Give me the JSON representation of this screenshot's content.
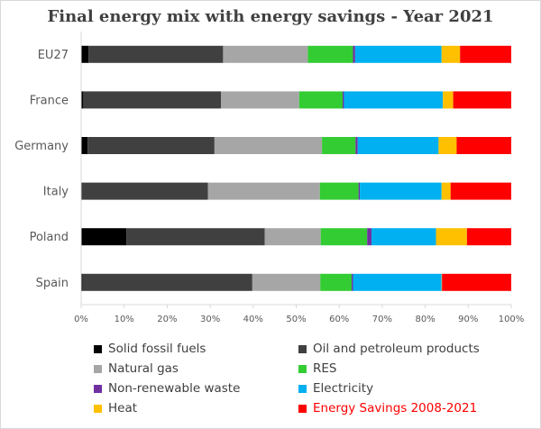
{
  "chart_data": {
    "type": "bar",
    "orientation": "horizontal",
    "stacked": "percent",
    "title": "Final energy mix with energy savings - Year 2021",
    "xlabel": "",
    "ylabel": "",
    "xlim": [
      0,
      100
    ],
    "x_ticks": [
      "0%",
      "10%",
      "20%",
      "30%",
      "40%",
      "50%",
      "60%",
      "70%",
      "80%",
      "90%",
      "100%"
    ],
    "grid": false,
    "legend_position": "bottom",
    "categories": [
      "EU27",
      "France",
      "Germany",
      "Italy",
      "Poland",
      "Spain"
    ],
    "series": [
      {
        "name": "Solid fossil fuels",
        "color": "#000000",
        "values": [
          1.7,
          0.5,
          1.5,
          0.2,
          10.5,
          0.3
        ]
      },
      {
        "name": "Oil and petroleum products",
        "color": "#404040",
        "values": [
          31.3,
          32.0,
          29.5,
          29.3,
          32.2,
          39.5
        ]
      },
      {
        "name": "Natural gas",
        "color": "#a6a6a6",
        "values": [
          19.7,
          18.2,
          25.0,
          26.0,
          13.0,
          15.8
        ]
      },
      {
        "name": "RES",
        "color": "#33cc33",
        "values": [
          10.5,
          10.1,
          7.8,
          9.0,
          10.8,
          7.3
        ]
      },
      {
        "name": "Non-renewable waste",
        "color": "#7030a0",
        "values": [
          0.5,
          0.3,
          0.5,
          0.3,
          1.0,
          0.3
        ]
      },
      {
        "name": "Electricity",
        "color": "#00b0f0",
        "values": [
          20.1,
          23.0,
          18.8,
          19.0,
          15.0,
          20.6
        ]
      },
      {
        "name": "Heat",
        "color": "#ffc000",
        "values": [
          4.3,
          2.4,
          4.2,
          2.1,
          7.2,
          0.1
        ]
      },
      {
        "name": "Energy Savings 2008-2021",
        "color": "#ff0000",
        "values": [
          11.9,
          13.5,
          12.7,
          14.1,
          10.3,
          16.1
        ]
      }
    ]
  }
}
